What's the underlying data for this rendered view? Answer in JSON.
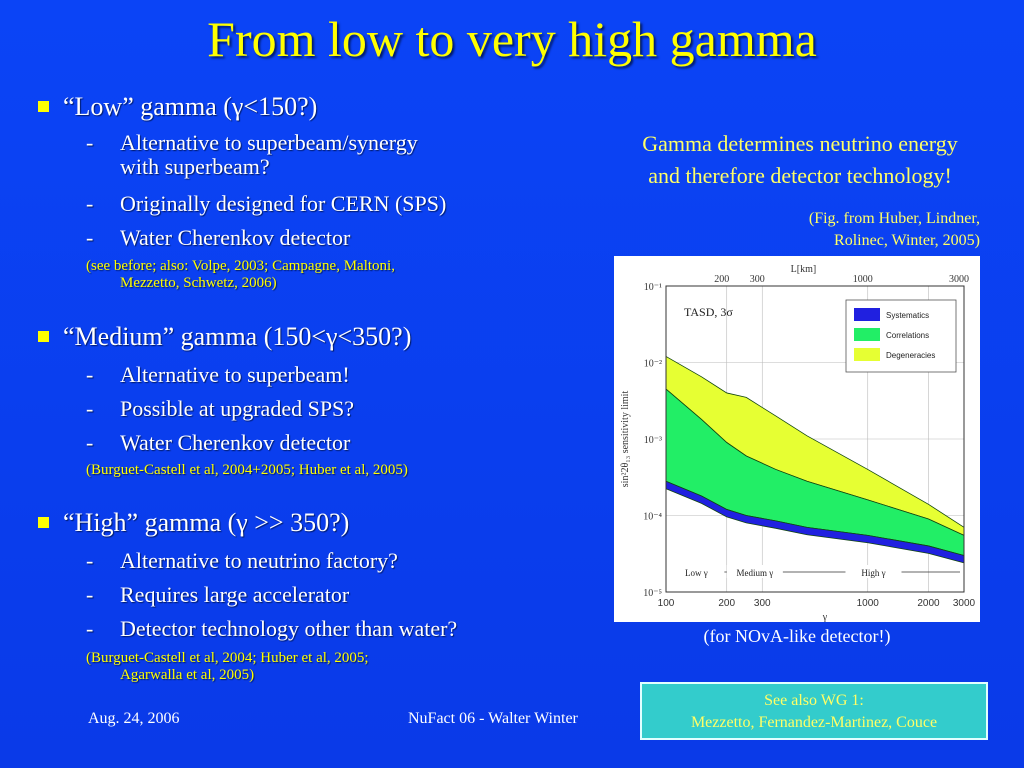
{
  "title": "From low to very high gamma",
  "sections": [
    {
      "heading": "“Low” gamma (γ<150?)",
      "items": [
        "Alternative to superbeam/synergy",
        "with superbeam?",
        "Originally designed for CERN (SPS)",
        "Water Cherenkov detector"
      ],
      "ref": [
        "(see before; also: Volpe, 2003; Campagne, Maltoni,",
        "Mezzetto, Schwetz, 2006)"
      ]
    },
    {
      "heading": "“Medium” gamma (150<γ<350?)",
      "items": [
        "Alternative to superbeam!",
        "Possible at upgraded SPS?",
        "Water Cherenkov detector"
      ],
      "ref": [
        "(Burguet-Castell et al, 2004+2005; Huber et al, 2005)"
      ]
    },
    {
      "heading": "“High” gamma (γ >> 350?)",
      "items": [
        "Alternative to neutrino factory?",
        "Requires large accelerator",
        "Detector technology other than water?"
      ],
      "ref": [
        "(Burguet-Castell et al, 2004; Huber et al, 2005;",
        "Agarwalla et al, 2005)"
      ]
    }
  ],
  "dash": "-",
  "side_note": [
    "Gamma determines neutrino energy",
    "and therefore detector technology!"
  ],
  "fig_ref": [
    "(Fig. from Huber, Lindner,",
    "Rolinec, Winter, 2005)"
  ],
  "caption": "(for NOvA-like detector!)",
  "see_also": [
    "See also WG 1:",
    "Mezzetto, Fernandez-Martinez, Couce"
  ],
  "footer": {
    "date": "Aug. 24, 2006",
    "event": "NuFact 06 - Walter Winter"
  },
  "chart_data": {
    "type": "area",
    "title": "TASD, 3σ",
    "xlabel": "γ",
    "ylabel": "sin²2θ₁₃ sensitivity limit",
    "x_top_label": "L[km]",
    "x_scale": "log",
    "y_scale": "log",
    "xlim": [
      100,
      3000
    ],
    "ylim": [
      1e-05,
      0.1
    ],
    "x_ticks": [
      "100",
      "200",
      "300",
      "1000",
      "2000",
      "3000"
    ],
    "x_top_ticks": [
      "200",
      "300",
      "1000",
      "3000"
    ],
    "y_ticks": [
      "10⁻⁵",
      "10⁻⁴",
      "10⁻³",
      "10⁻²",
      "10⁻¹"
    ],
    "regions": [
      "Low γ",
      "Medium γ",
      "High γ"
    ],
    "legend_position": "top-right",
    "colors": {
      "systematics": "#2020e0",
      "correlations": "#22ee66",
      "degeneracies": "#e6ff33"
    },
    "series": [
      {
        "name": "Degeneracies",
        "x": [
          100,
          150,
          200,
          250,
          350,
          500,
          1000,
          2000,
          3000
        ],
        "values": [
          0.012,
          0.0065,
          0.004,
          0.0035,
          0.002,
          0.0011,
          0.0004,
          0.00014,
          7e-05
        ]
      },
      {
        "name": "Correlations",
        "x": [
          100,
          150,
          200,
          250,
          350,
          500,
          1000,
          2000,
          3000
        ],
        "values": [
          0.0045,
          0.0018,
          0.0009,
          0.0006,
          0.0004,
          0.00028,
          0.00016,
          9e-05,
          5.5e-05
        ]
      },
      {
        "name": "Systematics",
        "x": [
          100,
          150,
          200,
          250,
          350,
          500,
          1000,
          2000,
          3000
        ],
        "values": [
          0.00028,
          0.00018,
          0.00012,
          0.0001,
          8.5e-05,
          7e-05,
          5.5e-05,
          4e-05,
          3e-05
        ]
      }
    ]
  }
}
